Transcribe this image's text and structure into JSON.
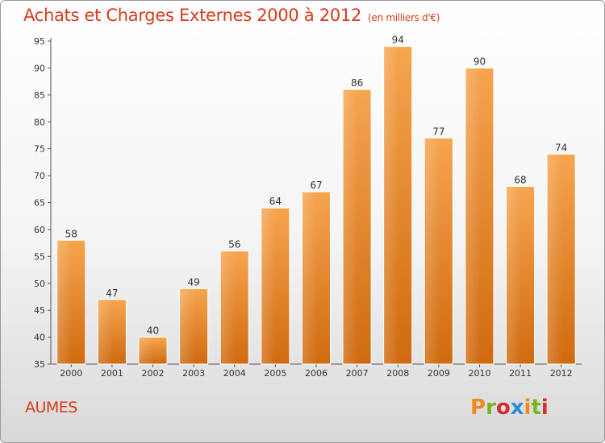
{
  "header": {
    "title": "Achats et Charges Externes 2000 à 2012",
    "subtitle": "(en milliers d'€)"
  },
  "footer": {
    "commune": "AUMES",
    "logo": "Proxiti",
    "logo_colors": [
      "#f08a1c",
      "#7ab51d",
      "#d62e2e",
      "#2a8fd6",
      "#f08a1c",
      "#7ab51d",
      "#d62e2e"
    ]
  },
  "chart_data": {
    "type": "bar",
    "categories": [
      "2000",
      "2001",
      "2002",
      "2003",
      "2004",
      "2005",
      "2006",
      "2007",
      "2008",
      "2009",
      "2010",
      "2011",
      "2012"
    ],
    "values": [
      58,
      47,
      40,
      49,
      56,
      64,
      67,
      86,
      94,
      77,
      90,
      68,
      74
    ],
    "title": "Achats et Charges Externes 2000 à 2012",
    "ylim": [
      35,
      95
    ],
    "yticks": [
      35,
      40,
      45,
      50,
      55,
      60,
      65,
      70,
      75,
      80,
      85,
      90,
      95
    ],
    "grid": false,
    "bar_color_top": "#f6a54f",
    "bar_color_bottom": "#d06a10"
  }
}
